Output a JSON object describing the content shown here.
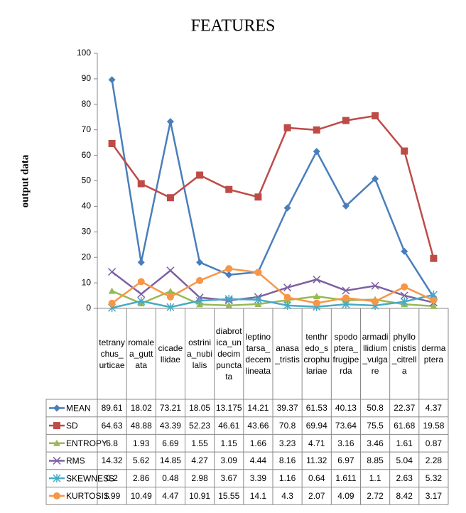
{
  "chart_data": {
    "type": "line",
    "title": "FEATURES",
    "y_label": "output data",
    "categories": [
      "tetranychus_urticae",
      "romalea_guttata",
      "cicadellidae",
      "ostrinia_nubilalis",
      "diabrotica_undecimpunctata",
      "leptinotarsa_decemlineata",
      "anasa_tristis",
      "tenthredo_scrophulariae",
      "spodoptera_frugiperda",
      "armadillidium_vulgare",
      "phyllocnistis_citrella",
      "dermaptera"
    ],
    "series": [
      {
        "name": "MEAN",
        "color": "#4a7ebb",
        "marker": "diamond",
        "values": [
          89.61,
          18.02,
          73.21,
          18.05,
          13.175,
          14.21,
          39.37,
          61.53,
          40.13,
          50.8,
          22.37,
          4.37
        ]
      },
      {
        "name": "SD",
        "color": "#be4b48",
        "marker": "square",
        "values": [
          64.63,
          48.88,
          43.39,
          52.23,
          46.61,
          43.66,
          70.8,
          69.94,
          73.64,
          75.5,
          61.68,
          19.58
        ]
      },
      {
        "name": "ENTROPY",
        "color": "#98b954",
        "marker": "triangle",
        "values": [
          6.8,
          1.93,
          6.69,
          1.55,
          1.15,
          1.66,
          3.23,
          4.71,
          3.16,
          3.46,
          1.61,
          0.87
        ]
      },
      {
        "name": "RMS",
        "color": "#7d60a0",
        "marker": "x",
        "values": [
          14.32,
          5.62,
          14.85,
          4.27,
          3.09,
          4.44,
          8.16,
          11.32,
          6.97,
          8.85,
          5.04,
          2.28
        ]
      },
      {
        "name": "SKEWNESS",
        "color": "#46aac5",
        "marker": "star",
        "values": [
          0.2,
          2.86,
          0.48,
          2.98,
          3.67,
          3.39,
          1.16,
          0.64,
          1.611,
          1.1,
          2.63,
          5.32
        ]
      },
      {
        "name": "KURTOSIS",
        "color": "#f79646",
        "marker": "circle",
        "values": [
          1.99,
          10.49,
          4.47,
          10.91,
          15.55,
          14.1,
          4.3,
          2.07,
          4.09,
          2.72,
          8.42,
          3.17
        ]
      }
    ],
    "ylim": [
      0,
      100
    ],
    "yticks": [
      0,
      10,
      20,
      30,
      40,
      50,
      60,
      70,
      80,
      90,
      100
    ],
    "grid": false
  }
}
